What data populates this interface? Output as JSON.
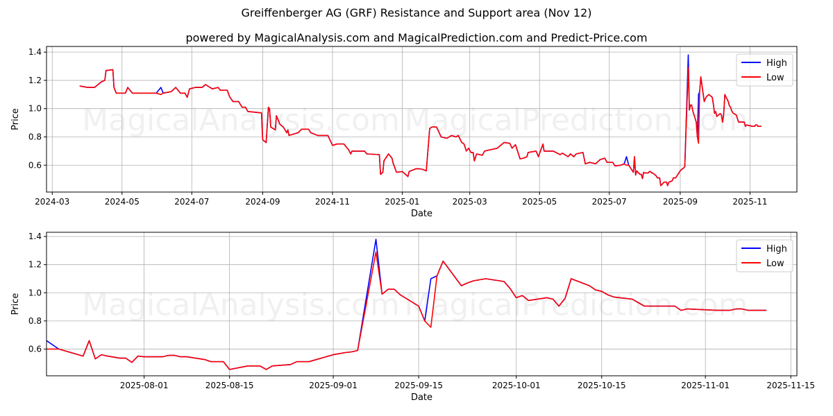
{
  "title": "Greiffenberger AG (GRF) Resistance and Support area (Nov 12)",
  "subtitle": "powered by MagicalAnalysis.com and MagicalPrediction.com and Predict-Price.com",
  "watermarks": [
    "MagicalAnalysis.com",
    "MagicalPrediction.com"
  ],
  "colors": {
    "high": "#0000ff",
    "low": "#ff0000",
    "grid": "#b0b0b0"
  },
  "chart_data": {
    "type": "line",
    "legend": [
      "High",
      "Low"
    ],
    "legend_placement": "top-right",
    "point_format": [
      "date",
      "high",
      "low"
    ],
    "points": [
      [
        "2024-03-25",
        1.16,
        1.16
      ],
      [
        "2024-04-01",
        1.15,
        1.15
      ],
      [
        "2024-04-07",
        1.15,
        1.15
      ],
      [
        "2024-04-13",
        1.19,
        1.19
      ],
      [
        "2024-04-16",
        1.2,
        1.2
      ],
      [
        "2024-04-17",
        1.27,
        1.27
      ],
      [
        "2024-04-23",
        1.275,
        1.275
      ],
      [
        "2024-04-24",
        1.15,
        1.15
      ],
      [
        "2024-04-26",
        1.11,
        1.11
      ],
      [
        "2024-05-04",
        1.11,
        1.11
      ],
      [
        "2024-05-06",
        1.15,
        1.15
      ],
      [
        "2024-05-10",
        1.11,
        1.11
      ],
      [
        "2024-05-31",
        1.11,
        1.11
      ],
      [
        "2024-06-04",
        1.15,
        1.1
      ],
      [
        "2024-06-06",
        1.11,
        1.11
      ],
      [
        "2024-06-13",
        1.12,
        1.12
      ],
      [
        "2024-06-17",
        1.15,
        1.15
      ],
      [
        "2024-06-21",
        1.11,
        1.11
      ],
      [
        "2024-06-25",
        1.11,
        1.11
      ],
      [
        "2024-06-27",
        1.08,
        1.08
      ],
      [
        "2024-06-29",
        1.14,
        1.14
      ],
      [
        "2024-07-04",
        1.15,
        1.15
      ],
      [
        "2024-07-10",
        1.15,
        1.15
      ],
      [
        "2024-07-13",
        1.17,
        1.17
      ],
      [
        "2024-07-19",
        1.14,
        1.14
      ],
      [
        "2024-07-24",
        1.15,
        1.15
      ],
      [
        "2024-07-26",
        1.13,
        1.13
      ],
      [
        "2024-08-01",
        1.13,
        1.13
      ],
      [
        "2024-08-03",
        1.085,
        1.085
      ],
      [
        "2024-08-06",
        1.05,
        1.05
      ],
      [
        "2024-08-11",
        1.05,
        1.05
      ],
      [
        "2024-08-14",
        1.01,
        1.01
      ],
      [
        "2024-08-17",
        1.01,
        1.01
      ],
      [
        "2024-08-19",
        0.98,
        0.98
      ],
      [
        "2024-08-31",
        0.97,
        0.97
      ],
      [
        "2024-09-01",
        0.78,
        0.78
      ],
      [
        "2024-09-04",
        0.76,
        0.76
      ],
      [
        "2024-09-06",
        1.01,
        1.01
      ],
      [
        "2024-09-07",
        1.0,
        1.0
      ],
      [
        "2024-09-08",
        0.87,
        0.87
      ],
      [
        "2024-09-12",
        0.85,
        0.85
      ],
      [
        "2024-09-13",
        0.95,
        0.95
      ],
      [
        "2024-09-16",
        0.89,
        0.89
      ],
      [
        "2024-09-19",
        0.87,
        0.87
      ],
      [
        "2024-09-22",
        0.83,
        0.83
      ],
      [
        "2024-09-23",
        0.85,
        0.85
      ],
      [
        "2024-09-24",
        0.81,
        0.81
      ],
      [
        "2024-09-28",
        0.82,
        0.82
      ],
      [
        "2024-10-02",
        0.83,
        0.83
      ],
      [
        "2024-10-05",
        0.855,
        0.855
      ],
      [
        "2024-10-11",
        0.855,
        0.855
      ],
      [
        "2024-10-13",
        0.83,
        0.83
      ],
      [
        "2024-10-19",
        0.81,
        0.81
      ],
      [
        "2024-10-28",
        0.81,
        0.81
      ],
      [
        "2024-11-01",
        0.74,
        0.74
      ],
      [
        "2024-11-05",
        0.75,
        0.75
      ],
      [
        "2024-11-11",
        0.75,
        0.75
      ],
      [
        "2024-11-15",
        0.71,
        0.71
      ],
      [
        "2024-11-17",
        0.68,
        0.68
      ],
      [
        "2024-11-18",
        0.7,
        0.7
      ],
      [
        "2024-11-29",
        0.7,
        0.7
      ],
      [
        "2024-12-01",
        0.68,
        0.68
      ],
      [
        "2024-12-12",
        0.675,
        0.675
      ],
      [
        "2024-12-13",
        0.535,
        0.535
      ],
      [
        "2024-12-15",
        0.55,
        0.55
      ],
      [
        "2024-12-16",
        0.63,
        0.63
      ],
      [
        "2024-12-20",
        0.68,
        0.68
      ],
      [
        "2024-12-23",
        0.65,
        0.65
      ],
      [
        "2024-12-24",
        0.615,
        0.615
      ],
      [
        "2024-12-27",
        0.55,
        0.55
      ],
      [
        "2025-01-01",
        0.555,
        0.555
      ],
      [
        "2025-01-06",
        0.52,
        0.52
      ],
      [
        "2025-01-07",
        0.555,
        0.555
      ],
      [
        "2025-01-13",
        0.575,
        0.575
      ],
      [
        "2025-01-16",
        0.575,
        0.575
      ],
      [
        "2025-01-19",
        0.57,
        0.57
      ],
      [
        "2025-01-22",
        0.56,
        0.56
      ],
      [
        "2025-01-25",
        0.86,
        0.86
      ],
      [
        "2025-01-27",
        0.87,
        0.87
      ],
      [
        "2025-01-31",
        0.87,
        0.87
      ],
      [
        "2025-02-04",
        0.8,
        0.8
      ],
      [
        "2025-02-09",
        0.79,
        0.79
      ],
      [
        "2025-02-13",
        0.81,
        0.81
      ],
      [
        "2025-02-17",
        0.8,
        0.8
      ],
      [
        "2025-02-19",
        0.81,
        0.81
      ],
      [
        "2025-02-22",
        0.76,
        0.76
      ],
      [
        "2025-02-24",
        0.75,
        0.75
      ],
      [
        "2025-02-26",
        0.7,
        0.7
      ],
      [
        "2025-02-28",
        0.72,
        0.72
      ],
      [
        "2025-03-02",
        0.69,
        0.69
      ],
      [
        "2025-03-04",
        0.69,
        0.69
      ],
      [
        "2025-03-05",
        0.63,
        0.63
      ],
      [
        "2025-03-07",
        0.68,
        0.68
      ],
      [
        "2025-03-12",
        0.67,
        0.67
      ],
      [
        "2025-03-14",
        0.7,
        0.7
      ],
      [
        "2025-03-25",
        0.72,
        0.72
      ],
      [
        "2025-03-31",
        0.76,
        0.76
      ],
      [
        "2025-04-05",
        0.755,
        0.755
      ],
      [
        "2025-04-07",
        0.72,
        0.72
      ],
      [
        "2025-04-10",
        0.745,
        0.745
      ],
      [
        "2025-04-14",
        0.645,
        0.645
      ],
      [
        "2025-04-17",
        0.65,
        0.65
      ],
      [
        "2025-04-20",
        0.66,
        0.66
      ],
      [
        "2025-04-21",
        0.69,
        0.69
      ],
      [
        "2025-04-28",
        0.7,
        0.7
      ],
      [
        "2025-04-30",
        0.66,
        0.66
      ],
      [
        "2025-05-04",
        0.75,
        0.75
      ],
      [
        "2025-05-05",
        0.7,
        0.7
      ],
      [
        "2025-05-13",
        0.7,
        0.7
      ],
      [
        "2025-05-19",
        0.675,
        0.675
      ],
      [
        "2025-05-21",
        0.685,
        0.685
      ],
      [
        "2025-05-26",
        0.66,
        0.66
      ],
      [
        "2025-05-28",
        0.68,
        0.68
      ],
      [
        "2025-05-31",
        0.66,
        0.66
      ],
      [
        "2025-06-02",
        0.68,
        0.68
      ],
      [
        "2025-06-08",
        0.69,
        0.69
      ],
      [
        "2025-06-10",
        0.61,
        0.61
      ],
      [
        "2025-06-14",
        0.62,
        0.62
      ],
      [
        "2025-06-19",
        0.61,
        0.61
      ],
      [
        "2025-06-23",
        0.64,
        0.64
      ],
      [
        "2025-06-27",
        0.65,
        0.65
      ],
      [
        "2025-06-29",
        0.62,
        0.62
      ],
      [
        "2025-07-04",
        0.62,
        0.62
      ],
      [
        "2025-07-06",
        0.595,
        0.595
      ],
      [
        "2025-07-11",
        0.6,
        0.6
      ],
      [
        "2025-07-14",
        0.61,
        0.61
      ],
      [
        "2025-07-16",
        0.66,
        0.6
      ],
      [
        "2025-07-18",
        0.6,
        0.6
      ],
      [
        "2025-07-22",
        0.55,
        0.55
      ],
      [
        "2025-07-23",
        0.66,
        0.66
      ],
      [
        "2025-07-24",
        0.53,
        0.53
      ],
      [
        "2025-07-25",
        0.56,
        0.56
      ],
      [
        "2025-07-26",
        0.55,
        0.55
      ],
      [
        "2025-07-28",
        0.535,
        0.535
      ],
      [
        "2025-07-29",
        0.535,
        0.535
      ],
      [
        "2025-07-30",
        0.505,
        0.505
      ],
      [
        "2025-07-31",
        0.55,
        0.55
      ],
      [
        "2025-08-01",
        0.545,
        0.545
      ],
      [
        "2025-08-04",
        0.545,
        0.545
      ],
      [
        "2025-08-05",
        0.555,
        0.555
      ],
      [
        "2025-08-06",
        0.555,
        0.555
      ],
      [
        "2025-08-07",
        0.545,
        0.545
      ],
      [
        "2025-08-08",
        0.545,
        0.545
      ],
      [
        "2025-08-11",
        0.525,
        0.525
      ],
      [
        "2025-08-12",
        0.51,
        0.51
      ],
      [
        "2025-08-14",
        0.51,
        0.51
      ],
      [
        "2025-08-15",
        0.455,
        0.455
      ],
      [
        "2025-08-18",
        0.48,
        0.48
      ],
      [
        "2025-08-20",
        0.48,
        0.48
      ],
      [
        "2025-08-21",
        0.455,
        0.455
      ],
      [
        "2025-08-22",
        0.48,
        0.48
      ],
      [
        "2025-08-25",
        0.49,
        0.49
      ],
      [
        "2025-08-26",
        0.51,
        0.51
      ],
      [
        "2025-08-28",
        0.51,
        0.51
      ],
      [
        "2025-09-01",
        0.56,
        0.56
      ],
      [
        "2025-09-03",
        0.575,
        0.575
      ],
      [
        "2025-09-04",
        0.58,
        0.58
      ],
      [
        "2025-09-05",
        0.59,
        0.59
      ],
      [
        "2025-09-08",
        1.38,
        1.29
      ],
      [
        "2025-09-09",
        0.99,
        0.99
      ],
      [
        "2025-09-10",
        1.025,
        1.025
      ],
      [
        "2025-09-11",
        1.025,
        1.025
      ],
      [
        "2025-09-12",
        0.985,
        0.985
      ],
      [
        "2025-09-15",
        0.905,
        0.905
      ],
      [
        "2025-09-16",
        0.8,
        0.8
      ],
      [
        "2025-09-17",
        1.1,
        0.755
      ],
      [
        "2025-09-18",
        1.12,
        1.12
      ],
      [
        "2025-09-19",
        1.225,
        1.225
      ],
      [
        "2025-09-22",
        1.05,
        1.05
      ],
      [
        "2025-09-23",
        1.07,
        1.07
      ],
      [
        "2025-09-24",
        1.085,
        1.085
      ],
      [
        "2025-09-26",
        1.1,
        1.1
      ],
      [
        "2025-09-29",
        1.08,
        1.08
      ],
      [
        "2025-09-30",
        1.03,
        1.03
      ],
      [
        "2025-10-01",
        0.965,
        0.965
      ],
      [
        "2025-10-02",
        0.98,
        0.98
      ],
      [
        "2025-10-03",
        0.945,
        0.945
      ],
      [
        "2025-10-06",
        0.965,
        0.965
      ],
      [
        "2025-10-07",
        0.955,
        0.955
      ],
      [
        "2025-10-08",
        0.905,
        0.905
      ],
      [
        "2025-10-09",
        0.96,
        0.96
      ],
      [
        "2025-10-10",
        1.1,
        1.1
      ],
      [
        "2025-10-13",
        1.05,
        1.05
      ],
      [
        "2025-10-14",
        1.02,
        1.02
      ],
      [
        "2025-10-15",
        1.01,
        1.01
      ],
      [
        "2025-10-16",
        0.985,
        0.985
      ],
      [
        "2025-10-17",
        0.97,
        0.97
      ],
      [
        "2025-10-20",
        0.955,
        0.955
      ],
      [
        "2025-10-21",
        0.93,
        0.93
      ],
      [
        "2025-10-22",
        0.905,
        0.905
      ],
      [
        "2025-10-27",
        0.905,
        0.905
      ],
      [
        "2025-10-28",
        0.875,
        0.875
      ],
      [
        "2025-10-29",
        0.885,
        0.885
      ],
      [
        "2025-11-03",
        0.875,
        0.875
      ],
      [
        "2025-11-05",
        0.875,
        0.875
      ],
      [
        "2025-11-06",
        0.885,
        0.885
      ],
      [
        "2025-11-07",
        0.885,
        0.885
      ],
      [
        "2025-11-08",
        0.875,
        0.875
      ],
      [
        "2025-11-11",
        0.875,
        0.875
      ]
    ],
    "panels": [
      {
        "name": "top",
        "xlabel": "Date",
        "ylabel": "Price",
        "xlim": [
          "2024-02-25",
          "2025-12-12"
        ],
        "ylim": [
          0.41,
          1.44
        ],
        "xticks": [
          "2024-03",
          "2024-05",
          "2024-07",
          "2024-09",
          "2024-11",
          "2025-01",
          "2025-03",
          "2025-05",
          "2025-07",
          "2025-09",
          "2025-11"
        ],
        "yticks": [
          "0.6",
          "0.8",
          "1.0",
          "1.2",
          "1.4"
        ],
        "grid": true
      },
      {
        "name": "bottom",
        "xlabel": "Date",
        "ylabel": "Price",
        "xlim": [
          "2025-07-16",
          "2025-11-16"
        ],
        "ylim": [
          0.41,
          1.43
        ],
        "xticks": [
          "2025-08-01",
          "2025-08-15",
          "2025-09-01",
          "2025-09-15",
          "2025-10-01",
          "2025-10-15",
          "2025-11-01",
          "2025-11-15"
        ],
        "yticks": [
          "0.6",
          "0.8",
          "1.0",
          "1.2",
          "1.4"
        ],
        "grid": true
      }
    ]
  }
}
